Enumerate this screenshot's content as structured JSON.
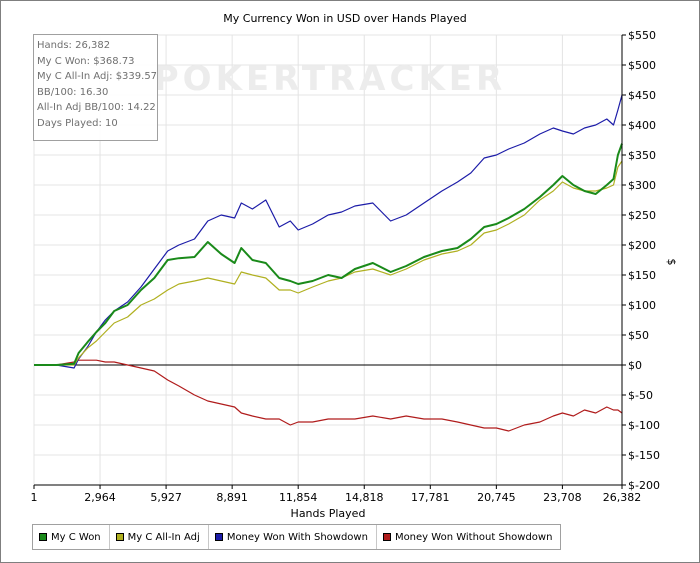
{
  "chart_data": {
    "type": "line",
    "title": "My Currency Won in USD over Hands Played",
    "xlabel": "Hands Played",
    "ylabel": "$",
    "watermark": "POKERTRACKER",
    "xlim": [
      1,
      26382
    ],
    "ylim": [
      -200,
      550
    ],
    "x_ticks": [
      1,
      2964,
      5927,
      8891,
      11854,
      14818,
      17781,
      20745,
      23708,
      26382
    ],
    "x_tick_labels": [
      "1",
      "2,964",
      "5,927",
      "8,891",
      "11,854",
      "14,818",
      "17,781",
      "20,745",
      "23,708",
      "26,382"
    ],
    "y_ticks": [
      -200,
      -150,
      -100,
      -50,
      0,
      50,
      100,
      150,
      200,
      250,
      300,
      350,
      400,
      450,
      500,
      550
    ],
    "y_tick_labels": [
      "$-200",
      "$-150",
      "$-100",
      "$-50",
      "$0",
      "$50",
      "$100",
      "$150",
      "$200",
      "$250",
      "$300",
      "$350",
      "$400",
      "$450",
      "$500",
      "$550"
    ],
    "grid": true,
    "legend_position": "bottom-left",
    "series": [
      {
        "name": "My C Won",
        "color": "#1a8a1a",
        "x": [
          1,
          1000,
          1800,
          2000,
          2400,
          2800,
          3200,
          3600,
          4200,
          4800,
          5400,
          6000,
          6500,
          7200,
          7800,
          8400,
          9000,
          9300,
          9800,
          10400,
          11000,
          11500,
          11854,
          12500,
          13200,
          13800,
          14400,
          15200,
          16000,
          16700,
          17500,
          18300,
          19000,
          19600,
          20200,
          20745,
          21300,
          22000,
          22700,
          23300,
          23708,
          24200,
          24700,
          25200,
          25700,
          26000,
          26200,
          26382
        ],
        "y": [
          0,
          0,
          2,
          20,
          38,
          55,
          70,
          90,
          100,
          125,
          145,
          175,
          178,
          180,
          205,
          185,
          170,
          195,
          175,
          170,
          145,
          140,
          135,
          140,
          150,
          145,
          160,
          170,
          155,
          165,
          180,
          190,
          195,
          210,
          230,
          235,
          245,
          260,
          280,
          300,
          315,
          300,
          290,
          285,
          300,
          310,
          350,
          369
        ]
      },
      {
        "name": "My C All-In Adj",
        "color": "#b0b020",
        "x": [
          1,
          1000,
          1800,
          2000,
          2400,
          2800,
          3200,
          3600,
          4200,
          4800,
          5400,
          6000,
          6500,
          7200,
          7800,
          8400,
          9000,
          9300,
          9800,
          10400,
          11000,
          11500,
          11854,
          12500,
          13200,
          13800,
          14400,
          15200,
          16000,
          16700,
          17500,
          18300,
          19000,
          19600,
          20200,
          20745,
          21300,
          22000,
          22700,
          23300,
          23708,
          24200,
          24700,
          25200,
          25700,
          26000,
          26200,
          26382
        ],
        "y": [
          0,
          0,
          0,
          12,
          28,
          40,
          55,
          70,
          80,
          100,
          110,
          125,
          135,
          140,
          145,
          140,
          135,
          155,
          150,
          145,
          125,
          125,
          120,
          130,
          140,
          145,
          155,
          160,
          150,
          160,
          175,
          185,
          190,
          200,
          220,
          225,
          235,
          250,
          275,
          290,
          305,
          295,
          290,
          290,
          295,
          300,
          330,
          340
        ]
      },
      {
        "name": "Money Won With Showdown",
        "color": "#1c1ca8",
        "x": [
          1,
          1000,
          1800,
          2000,
          2400,
          2800,
          3200,
          3600,
          4200,
          4800,
          5400,
          6000,
          6500,
          7200,
          7800,
          8400,
          9000,
          9300,
          9800,
          10400,
          11000,
          11500,
          11854,
          12500,
          13200,
          13800,
          14400,
          15200,
          16000,
          16700,
          17500,
          18300,
          19000,
          19600,
          20200,
          20745,
          21300,
          22000,
          22700,
          23300,
          23708,
          24200,
          24700,
          25200,
          25700,
          26000,
          26200,
          26382
        ],
        "y": [
          0,
          0,
          -5,
          10,
          30,
          55,
          75,
          90,
          105,
          130,
          160,
          190,
          200,
          210,
          240,
          250,
          245,
          270,
          260,
          275,
          230,
          240,
          225,
          235,
          250,
          255,
          265,
          270,
          240,
          250,
          270,
          290,
          305,
          320,
          345,
          350,
          360,
          370,
          385,
          395,
          390,
          385,
          395,
          400,
          410,
          400,
          425,
          450
        ]
      },
      {
        "name": "Money Won Without Showdown",
        "color": "#b01c1c",
        "x": [
          1,
          1000,
          1800,
          2000,
          2400,
          2800,
          3200,
          3600,
          4200,
          4800,
          5400,
          6000,
          6500,
          7200,
          7800,
          8400,
          9000,
          9300,
          9800,
          10400,
          11000,
          11500,
          11854,
          12500,
          13200,
          13800,
          14400,
          15200,
          16000,
          16700,
          17500,
          18300,
          19000,
          19600,
          20200,
          20745,
          21300,
          22000,
          22700,
          23300,
          23708,
          24200,
          24700,
          25200,
          25700,
          26000,
          26200,
          26382
        ],
        "y": [
          0,
          0,
          5,
          8,
          8,
          8,
          5,
          5,
          0,
          -5,
          -10,
          -25,
          -35,
          -50,
          -60,
          -65,
          -70,
          -80,
          -85,
          -90,
          -90,
          -100,
          -95,
          -95,
          -90,
          -90,
          -90,
          -85,
          -90,
          -85,
          -90,
          -90,
          -95,
          -100,
          -105,
          -105,
          -110,
          -100,
          -95,
          -85,
          -80,
          -85,
          -75,
          -80,
          -70,
          -75,
          -75,
          -80
        ]
      }
    ]
  },
  "stats": [
    "Hands: 26,382",
    "My C Won: $368.73",
    "My C All-In Adj: $339.57",
    "BB/100: 16.30",
    "All-In Adj BB/100: 14.22",
    "Days Played: 10"
  ],
  "legend": [
    {
      "label": "My C Won",
      "color": "#1a8a1a"
    },
    {
      "label": "My C All-In Adj",
      "color": "#b0b020"
    },
    {
      "label": "Money Won With Showdown",
      "color": "#1c1ca8"
    },
    {
      "label": "Money Won Without Showdown",
      "color": "#b01c1c"
    }
  ]
}
